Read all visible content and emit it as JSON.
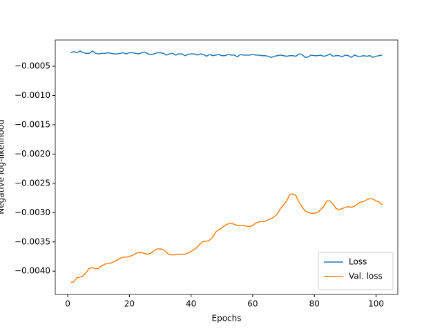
{
  "chart_data": {
    "type": "line",
    "xlabel": "Epochs",
    "ylabel": "Negative log-likelihood",
    "x": [
      1,
      2,
      3,
      4,
      5,
      6,
      7,
      8,
      9,
      10,
      11,
      12,
      13,
      14,
      15,
      16,
      17,
      18,
      19,
      20,
      21,
      22,
      23,
      24,
      25,
      26,
      27,
      28,
      29,
      30,
      31,
      32,
      33,
      34,
      35,
      36,
      37,
      38,
      39,
      40,
      41,
      42,
      43,
      44,
      45,
      46,
      47,
      48,
      49,
      50,
      51,
      52,
      53,
      54,
      55,
      56,
      57,
      58,
      59,
      60,
      61,
      62,
      63,
      64,
      65,
      66,
      67,
      68,
      69,
      70,
      71,
      72,
      73,
      74,
      75,
      76,
      77,
      78,
      79,
      80,
      81,
      82,
      83,
      84,
      85,
      86,
      87,
      88,
      89,
      90,
      91,
      92,
      93,
      94,
      95,
      96,
      97,
      98,
      99,
      100,
      101,
      102
    ],
    "series": [
      {
        "name": "Loss",
        "color": "#1f77b4",
        "values": [
          -0.00027,
          -0.00025,
          -0.00027,
          -0.00024,
          -0.00027,
          -0.00028,
          -0.00028,
          -0.00024,
          -0.00028,
          -0.00029,
          -0.00028,
          -0.00028,
          -0.00027,
          -0.00028,
          -0.00029,
          -0.00029,
          -0.00028,
          -0.00027,
          -0.00029,
          -0.00027,
          -0.00027,
          -0.00028,
          -0.00029,
          -0.00027,
          -0.00026,
          -0.00029,
          -0.0003,
          -0.00029,
          -0.00027,
          -0.00027,
          -0.00028,
          -0.00031,
          -0.00029,
          -0.00028,
          -0.00031,
          -0.00029,
          -0.00029,
          -0.00032,
          -0.0003,
          -0.00029,
          -0.00029,
          -0.00031,
          -0.00029,
          -0.0003,
          -0.00033,
          -0.0003,
          -0.00032,
          -0.00031,
          -0.0003,
          -0.00032,
          -0.00032,
          -0.0003,
          -0.00031,
          -0.00031,
          -0.00034,
          -0.0003,
          -0.00031,
          -0.00031,
          -0.00031,
          -0.0003,
          -0.00031,
          -0.00031,
          -0.00032,
          -0.00032,
          -0.00033,
          -0.00035,
          -0.00033,
          -0.00032,
          -0.00031,
          -0.00032,
          -0.00033,
          -0.00032,
          -0.00032,
          -0.00033,
          -0.00029,
          -0.0003,
          -0.00035,
          -0.00034,
          -0.00031,
          -0.00032,
          -0.00032,
          -0.00031,
          -0.00033,
          -0.00032,
          -0.00029,
          -0.00033,
          -0.00032,
          -0.00032,
          -0.00034,
          -0.00031,
          -0.00032,
          -0.00035,
          -0.00031,
          -0.00033,
          -0.00033,
          -0.00032,
          -0.00033,
          -0.00032,
          -0.00035,
          -0.00033,
          -0.00032,
          -0.00031
        ]
      },
      {
        "name": "Val. loss",
        "color": "#ff7f0e",
        "values": [
          -0.00419,
          -0.00418,
          -0.00411,
          -0.0041,
          -0.00408,
          -0.00402,
          -0.00395,
          -0.00394,
          -0.00396,
          -0.00395,
          -0.00391,
          -0.00388,
          -0.00387,
          -0.00386,
          -0.00384,
          -0.00381,
          -0.00378,
          -0.00376,
          -0.00376,
          -0.00375,
          -0.00373,
          -0.0037,
          -0.00368,
          -0.00368,
          -0.0037,
          -0.00371,
          -0.00369,
          -0.00365,
          -0.00362,
          -0.00362,
          -0.00363,
          -0.00368,
          -0.00372,
          -0.00372,
          -0.00372,
          -0.00371,
          -0.00371,
          -0.00371,
          -0.00369,
          -0.00366,
          -0.00363,
          -0.00359,
          -0.00353,
          -0.00349,
          -0.00349,
          -0.00347,
          -0.00342,
          -0.00333,
          -0.00329,
          -0.00326,
          -0.00322,
          -0.00319,
          -0.00318,
          -0.0032,
          -0.00322,
          -0.00322,
          -0.00322,
          -0.00323,
          -0.00324,
          -0.00322,
          -0.00318,
          -0.00316,
          -0.00315,
          -0.00315,
          -0.00312,
          -0.0031,
          -0.00307,
          -0.00302,
          -0.00293,
          -0.00287,
          -0.0028,
          -0.00269,
          -0.00268,
          -0.00271,
          -0.00282,
          -0.0029,
          -0.00297,
          -0.003,
          -0.00301,
          -0.00301,
          -0.003,
          -0.00295,
          -0.0029,
          -0.0028,
          -0.0028,
          -0.00285,
          -0.00293,
          -0.00295,
          -0.00293,
          -0.00291,
          -0.0029,
          -0.00291,
          -0.00289,
          -0.00285,
          -0.00282,
          -0.00281,
          -0.00278,
          -0.00276,
          -0.00277,
          -0.0028,
          -0.00282,
          -0.00287
        ]
      }
    ],
    "xlim": [
      -4.05,
      107.05
    ],
    "xticks": [
      0,
      20,
      40,
      60,
      80,
      100
    ],
    "ylim": [
      -0.0043975,
      -5.25e-05
    ],
    "yticks": [
      {
        "value": -0.0005,
        "label": "−0.0005"
      },
      {
        "value": -0.001,
        "label": "−0.0010"
      },
      {
        "value": -0.0015,
        "label": "−0.0015"
      },
      {
        "value": -0.002,
        "label": "−0.0020"
      },
      {
        "value": -0.0025,
        "label": "−0.0025"
      },
      {
        "value": -0.003,
        "label": "−0.0030"
      },
      {
        "value": -0.0035,
        "label": "−0.0035"
      },
      {
        "value": -0.004,
        "label": "−0.0040"
      }
    ],
    "legend": "lower right",
    "grid": false
  }
}
